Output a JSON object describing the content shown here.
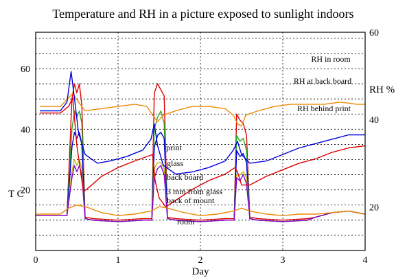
{
  "chart_data": {
    "type": "line",
    "title": "Temperature and RH in a picture exposed to sunlight indoors",
    "xlabel": "Day",
    "ylabel_left": "T C",
    "ylabel_right": "RH %",
    "xlim": [
      0,
      4
    ],
    "temp_ylim": [
      0,
      72
    ],
    "rh_ylim": [
      10,
      60
    ],
    "x_ticks": [
      "0",
      "1",
      "2",
      "3",
      "4"
    ],
    "temp_ticks": [
      {
        "value": 20,
        "label": "20"
      },
      {
        "value": 40,
        "label": "40"
      },
      {
        "value": 60,
        "label": "60"
      }
    ],
    "rh_ticks": [
      {
        "value": 20,
        "label": "20"
      },
      {
        "value": 40,
        "label": "40"
      },
      {
        "value": 60,
        "label": "60"
      }
    ],
    "grid": true,
    "rh_series": [
      {
        "name": "RH in room",
        "color": "#ee8800",
        "x": [
          0.05,
          0.3,
          0.4,
          0.45,
          0.52,
          0.6,
          0.8,
          1.0,
          1.2,
          1.35,
          1.42,
          1.48,
          1.55,
          1.7,
          1.9,
          2.1,
          2.3,
          2.4,
          2.45,
          2.5,
          2.55,
          2.7,
          2.9,
          3.1,
          3.3,
          3.5,
          3.7,
          3.9,
          4.0
        ],
        "y": [
          43,
          43,
          45,
          46,
          44,
          42,
          42.5,
          43,
          43.5,
          43,
          41,
          39.5,
          41,
          42,
          43,
          43,
          42.5,
          41,
          39,
          38.5,
          41,
          42,
          43,
          43.5,
          43.5,
          43.5,
          44,
          43.5,
          43.5
        ]
      },
      {
        "name": "RH at back board",
        "color": "#0000dd",
        "x": [
          0.05,
          0.3,
          0.38,
          0.43,
          0.47,
          0.52,
          0.6,
          0.75,
          0.9,
          1.1,
          1.3,
          1.4,
          1.44,
          1.48,
          1.55,
          1.7,
          1.9,
          2.1,
          2.3,
          2.4,
          2.45,
          2.5,
          2.6,
          2.8,
          3.0,
          3.2,
          3.4,
          3.6,
          3.8,
          4.0
        ],
        "y": [
          42,
          42,
          44,
          51,
          45,
          37,
          32,
          30,
          30.5,
          31.5,
          33,
          35.5,
          39,
          34,
          29.5,
          27.5,
          28,
          29,
          30.5,
          33,
          35,
          32,
          30,
          30.5,
          32,
          33.5,
          34.5,
          35.5,
          36.5,
          36.5
        ]
      },
      {
        "name": "RH behind print",
        "color": "#dd0000",
        "x": [
          0.05,
          0.3,
          0.4,
          0.45,
          0.5,
          0.58,
          0.65,
          0.8,
          1.0,
          1.2,
          1.42,
          1.45,
          1.5,
          1.58,
          1.7,
          1.9,
          2.1,
          2.3,
          2.42,
          2.45,
          2.5,
          2.6,
          2.8,
          3.0,
          3.2,
          3.4,
          3.6,
          3.8,
          4.0
        ],
        "y": [
          41.5,
          41.5,
          43,
          45,
          34,
          23.5,
          24.5,
          27,
          29,
          30.5,
          32,
          26,
          22,
          20,
          21.5,
          24,
          26,
          27.5,
          29,
          28,
          25,
          25,
          27,
          28.5,
          30,
          31,
          32.5,
          33.5,
          34
        ]
      }
    ],
    "temp_series": [
      {
        "name": "print",
        "color": "#dd0000",
        "x": [
          0,
          0.38,
          0.44,
          0.47,
          0.5,
          0.53,
          0.56,
          0.6,
          0.7,
          1.0,
          1.3,
          1.41,
          1.44,
          1.48,
          1.52,
          1.56,
          1.6,
          1.7,
          2.0,
          2.3,
          2.41,
          2.44,
          2.48,
          2.52,
          2.56,
          2.6,
          2.7,
          3.0,
          3.3,
          3.4,
          3.6,
          3.8,
          4.0
        ],
        "y": [
          11.5,
          11.5,
          50,
          55,
          52,
          55,
          48,
          11,
          10.5,
          10,
          10.5,
          10.5,
          52,
          55,
          53,
          51,
          11,
          10.5,
          10,
          10.5,
          10.5,
          45,
          43,
          42,
          38,
          11,
          10.5,
          10,
          10.5,
          11,
          12.5,
          13,
          12
        ]
      },
      {
        "name": "glass",
        "color": "#22aa22",
        "x": [
          0,
          0.38,
          0.44,
          0.47,
          0.5,
          0.53,
          0.56,
          0.6,
          0.7,
          1.0,
          1.3,
          1.41,
          1.44,
          1.48,
          1.52,
          1.56,
          1.6,
          1.7,
          2.0,
          2.3,
          2.41,
          2.44,
          2.48,
          2.52,
          2.56,
          2.6,
          2.7,
          3.0,
          3.3,
          3.4,
          3.6,
          3.8,
          4.0
        ],
        "y": [
          11.5,
          11.5,
          40,
          46,
          44,
          46,
          42,
          10.5,
          10,
          9.5,
          10,
          10,
          40,
          44,
          46,
          42,
          10.5,
          10,
          9.5,
          10,
          10,
          38,
          36,
          37,
          33,
          10.5,
          10,
          9.5,
          10,
          11,
          12.5,
          13,
          12
        ]
      },
      {
        "name": "back board",
        "color": "#0000dd",
        "x": [
          0,
          0.38,
          0.44,
          0.47,
          0.5,
          0.53,
          0.56,
          0.6,
          0.7,
          1.0,
          1.3,
          1.41,
          1.44,
          1.48,
          1.52,
          1.56,
          1.6,
          1.7,
          2.0,
          2.3,
          2.41,
          2.44,
          2.48,
          2.52,
          2.56,
          2.6,
          2.7,
          3.0,
          3.3,
          3.4,
          3.6,
          3.8,
          4.0
        ],
        "y": [
          11.5,
          11.5,
          34,
          39,
          37,
          39,
          35,
          10.5,
          10,
          9.5,
          10,
          10,
          34,
          38,
          39,
          37,
          10.5,
          10,
          9.5,
          10,
          10,
          33,
          31,
          32,
          29,
          10.5,
          10,
          9.5,
          10,
          11,
          12.5,
          13,
          12
        ]
      },
      {
        "name": "3 mm from glass",
        "color": "#bbbb00",
        "x": [
          0,
          0.38,
          0.44,
          0.47,
          0.5,
          0.53,
          0.56,
          0.6,
          0.7,
          1.0,
          1.3,
          1.41,
          1.44,
          1.48,
          1.52,
          1.56,
          1.6,
          1.7,
          2.0,
          2.3,
          2.41,
          2.44,
          2.48,
          2.52,
          2.56,
          2.6,
          2.7,
          3.0,
          3.3,
          3.4,
          3.6,
          3.8,
          4.0
        ],
        "y": [
          11.5,
          11.5,
          26,
          30,
          28,
          30,
          27,
          10.5,
          10,
          9.5,
          10,
          10,
          27,
          29,
          29,
          27,
          10.5,
          10,
          9.5,
          10,
          10,
          25,
          25,
          26,
          24,
          10.5,
          10,
          9.5,
          10,
          11,
          12.5,
          13,
          12
        ]
      },
      {
        "name": "back of mount",
        "color": "#8800cc",
        "x": [
          0,
          0.38,
          0.44,
          0.47,
          0.5,
          0.53,
          0.56,
          0.6,
          0.7,
          1.0,
          1.3,
          1.41,
          1.44,
          1.48,
          1.52,
          1.56,
          1.6,
          1.7,
          2.0,
          2.3,
          2.41,
          2.44,
          2.48,
          2.52,
          2.56,
          2.6,
          2.7,
          3.0,
          3.3,
          3.4,
          3.6,
          3.8,
          4.0
        ],
        "y": [
          11.5,
          11.5,
          24,
          28,
          26,
          28,
          25,
          10.5,
          10,
          9.5,
          10,
          10,
          24,
          27,
          28,
          25,
          10.5,
          10,
          9.5,
          10,
          10,
          24,
          23,
          25,
          22,
          10.5,
          10,
          9.5,
          10,
          11,
          12.5,
          13,
          12
        ]
      },
      {
        "name": "room",
        "color": "#ee8800",
        "x": [
          0,
          0.3,
          0.4,
          0.5,
          0.6,
          0.8,
          1.0,
          1.2,
          1.4,
          1.5,
          1.6,
          1.8,
          2.0,
          2.2,
          2.4,
          2.5,
          2.6,
          2.8,
          3.0,
          3.2,
          3.4,
          3.6,
          3.8,
          4.0
        ],
        "y": [
          12,
          12,
          14,
          15,
          14.5,
          12.5,
          11.5,
          12,
          13,
          14.5,
          14,
          12.5,
          11.5,
          12,
          13,
          14,
          13,
          12,
          11.5,
          12,
          12,
          12.5,
          13,
          12
        ]
      }
    ]
  }
}
